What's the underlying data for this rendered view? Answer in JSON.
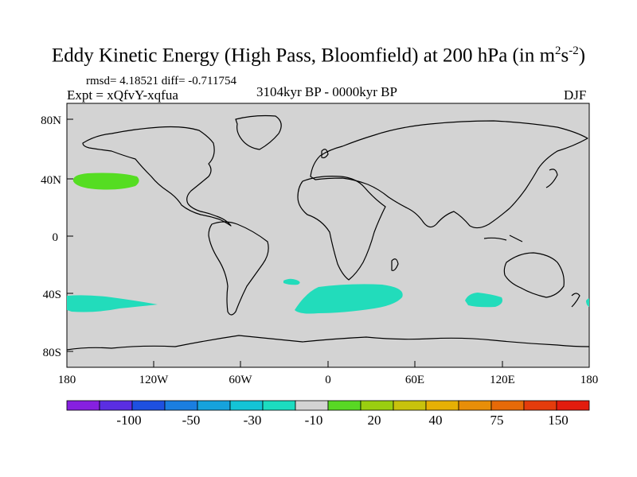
{
  "title": {
    "main": "Eddy Kinetic Energy (High Pass, Bloomfield) at 200 hPa (in m",
    "sup1": "2",
    "mid": "s",
    "sup2": "-2",
    "close": ")"
  },
  "stats": "rmsd= 4.18521 diff= -0.711754",
  "experiment": "Expt = xQfvY-xqfua",
  "period": "3104kyr BP - 0000kyr BP",
  "season": "DJF",
  "map": {
    "land_sea_color": "#d3d3d3",
    "coast_color": "#000000",
    "lat_labels": [
      "80N",
      "40N",
      "0",
      "40S",
      "80S"
    ],
    "lon_labels": [
      "180",
      "120W",
      "60W",
      "0",
      "60E",
      "120E",
      "180"
    ],
    "anomalies": [
      {
        "region": "North Pacific",
        "level": "20",
        "color": "#55dd22"
      },
      {
        "region": "South Pacific",
        "level": "-10",
        "color": "#22dcbb"
      },
      {
        "region": "South Atlantic",
        "level": "-10",
        "color": "#22dcbb"
      },
      {
        "region": "Southern Ocean",
        "level": "-10",
        "color": "#22dcbb"
      },
      {
        "region": "South Indian",
        "level": "-10",
        "color": "#22dcbb"
      }
    ]
  },
  "colorbar": {
    "colors": [
      "#8620e0",
      "#5a2ee2",
      "#1e50e0",
      "#1a7ee0",
      "#16a2dc",
      "#14c4d6",
      "#1cdcc0",
      "#d3d3d3",
      "#58d824",
      "#9ace10",
      "#c8c20c",
      "#e6b004",
      "#e88e08",
      "#e66a08",
      "#e43c0c",
      "#e21c0e"
    ],
    "labels": [
      "-100",
      "-50",
      "-30",
      "-10",
      "20",
      "40",
      "75",
      "150"
    ]
  }
}
